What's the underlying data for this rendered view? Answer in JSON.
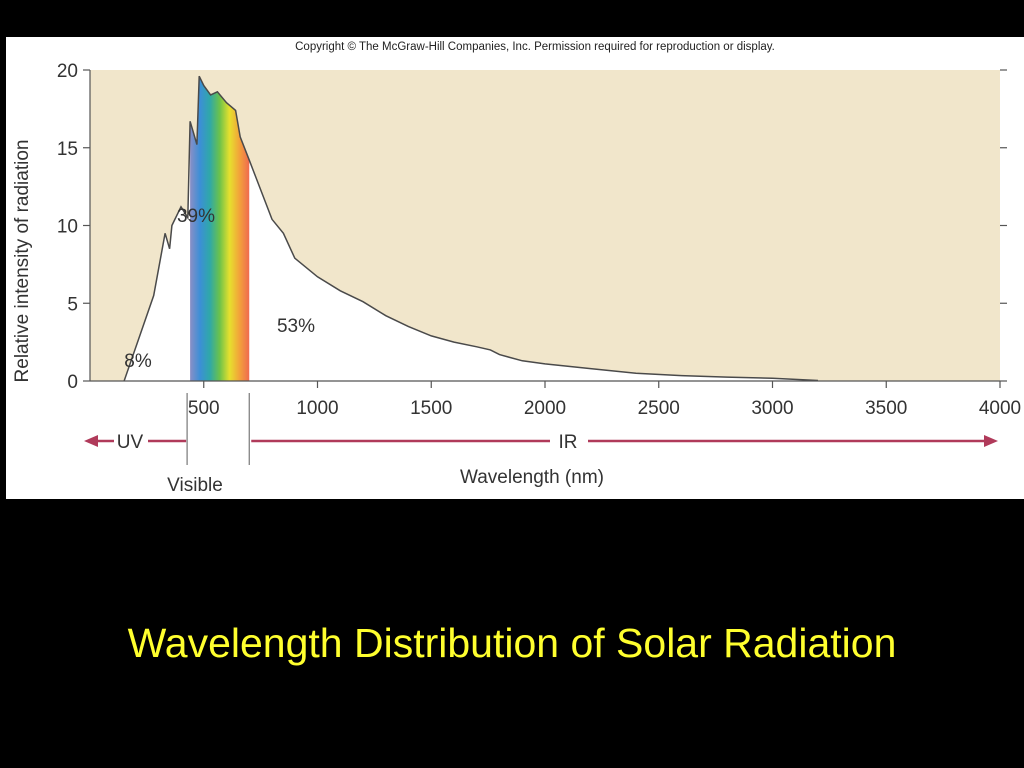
{
  "slide": {
    "title": "Wavelength Distribution of Solar Radiation",
    "title_color": "#ffff2e",
    "background": "#000000"
  },
  "chart_data": {
    "type": "area",
    "copyright": "Copyright © The McGraw-Hill Companies, Inc. Permission required for reproduction or display.",
    "title": "",
    "xlabel": "Wavelength (nm)",
    "ylabel": "Relative intensity of radiation",
    "xlim": [
      0,
      4000
    ],
    "ylim": [
      0,
      20
    ],
    "x_ticks": [
      500,
      1000,
      1500,
      2000,
      2500,
      3000,
      3500,
      4000
    ],
    "y_ticks": [
      0,
      5,
      10,
      15,
      20
    ],
    "grid": false,
    "series": [
      {
        "x": [
          150,
          280,
          330,
          350,
          360,
          400,
          430,
          440,
          450,
          470,
          480,
          500,
          530,
          560,
          600,
          640,
          660,
          700,
          800,
          850,
          900,
          1000,
          1100,
          1200,
          1300,
          1400,
          1500,
          1600,
          1700,
          1760,
          1800,
          1900,
          2000,
          2200,
          2400,
          2600,
          2800,
          3000,
          3200
        ],
        "y": [
          0,
          5.5,
          9.5,
          8.5,
          10,
          11.2,
          10.5,
          16.7,
          16.2,
          15.2,
          19.6,
          19.0,
          18.4,
          18.6,
          17.9,
          17.4,
          15.7,
          14.2,
          10.4,
          9.5,
          7.9,
          6.7,
          5.8,
          5.1,
          4.2,
          3.5,
          2.9,
          2.5,
          2.2,
          2.0,
          1.7,
          1.3,
          1.1,
          0.8,
          0.5,
          0.35,
          0.25,
          0.18,
          0.03
        ]
      }
    ],
    "bands": [
      {
        "label": "UV",
        "percent_label": "8%",
        "x_range": [
          150,
          440
        ]
      },
      {
        "label": "Visible",
        "percent_label": "39%",
        "x_range": [
          440,
          700
        ]
      },
      {
        "label": "IR",
        "percent_label": "53%",
        "x_range": [
          700,
          4000
        ]
      }
    ],
    "spectrum_colors": [
      "#8a8fc6",
      "#3c8fd6",
      "#2fa8a8",
      "#6cc24a",
      "#e6e02e",
      "#f2a33a",
      "#f06a4f"
    ],
    "background_color": "#f1e6cb",
    "curve_color": "#4a4a4a",
    "arrow_color": "#b03a5a",
    "text_color": "#333333"
  }
}
